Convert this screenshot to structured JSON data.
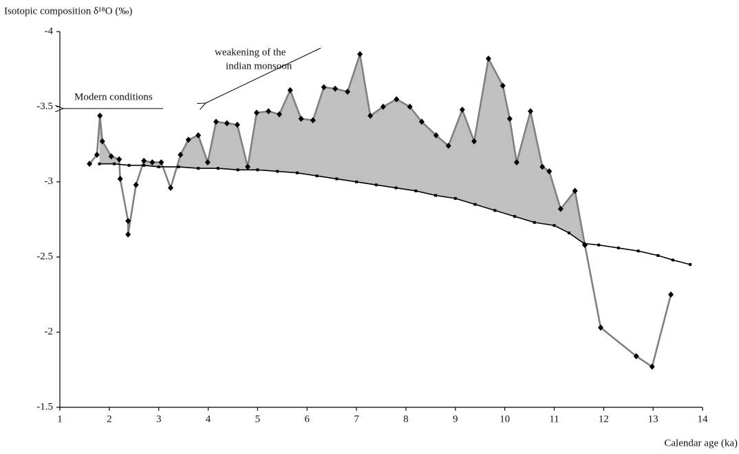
{
  "chart_data": {
    "type": "line",
    "ylabel": "Isotopic composition δ¹⁸O (‰)",
    "xlabel": "Calendar age (ka)",
    "annotations": [
      "Modern conditions",
      "weakening of the",
      "indian monsoon"
    ],
    "xlim": [
      1,
      14
    ],
    "xticks": [
      1,
      2,
      3,
      4,
      5,
      6,
      7,
      8,
      9,
      10,
      11,
      12,
      13,
      14
    ],
    "ylim": [
      -1.5,
      -4
    ],
    "yticks": [
      -4,
      -3.5,
      -3,
      -2.5,
      -2,
      -1.5
    ],
    "fill_color": "#c0c0c0",
    "series": [
      {
        "color": "#808080",
        "marker": "diamond",
        "marker_color": "#000000",
        "x": [
          1.6,
          1.75,
          1.81,
          1.86,
          2.04,
          2.2,
          2.22,
          2.38,
          2.38,
          2.54,
          2.7,
          2.87,
          3.05,
          3.24,
          3.44,
          3.6,
          3.8,
          3.99,
          4.16,
          4.38,
          4.59,
          4.8,
          4.98,
          5.22,
          5.44,
          5.66,
          5.88,
          6.12,
          6.34,
          6.57,
          6.82,
          7.07,
          7.28,
          7.54,
          7.81,
          8.08,
          8.32,
          8.61,
          8.86,
          9.14,
          9.38,
          9.67,
          9.96,
          10.1,
          10.24,
          10.52,
          10.76,
          10.9,
          11.13,
          11.42,
          11.62,
          11.94,
          12.66,
          12.98,
          13.36
        ],
        "values": [
          -3.12,
          -3.18,
          -3.44,
          -3.27,
          -3.17,
          -3.15,
          -3.02,
          -2.74,
          -2.65,
          -2.98,
          -3.14,
          -3.13,
          -3.13,
          -2.96,
          -3.18,
          -3.28,
          -3.31,
          -3.13,
          -3.4,
          -3.39,
          -3.38,
          -3.1,
          -3.46,
          -3.47,
          -3.45,
          -3.61,
          -3.42,
          -3.41,
          -3.63,
          -3.62,
          -3.6,
          -3.85,
          -3.44,
          -3.5,
          -3.55,
          -3.5,
          -3.4,
          -3.31,
          -3.24,
          -3.48,
          -3.27,
          -3.82,
          -3.64,
          -3.42,
          -3.13,
          -3.47,
          -3.1,
          -3.07,
          -2.82,
          -2.94,
          -2.58,
          -2.03,
          -1.84,
          -1.77,
          -2.25
        ]
      },
      {
        "color": "#000000",
        "marker": "square",
        "marker_color": "#000000",
        "x": [
          1.8,
          2.1,
          2.4,
          2.7,
          3.0,
          3.4,
          3.8,
          4.2,
          4.6,
          5.0,
          5.4,
          5.8,
          6.2,
          6.6,
          7.0,
          7.4,
          7.8,
          8.2,
          8.6,
          9.0,
          9.4,
          9.8,
          10.2,
          10.6,
          11.0,
          11.3,
          11.6,
          11.9,
          12.3,
          12.7,
          13.1,
          13.4,
          13.75
        ],
        "values": [
          -3.12,
          -3.12,
          -3.11,
          -3.11,
          -3.1,
          -3.1,
          -3.09,
          -3.09,
          -3.08,
          -3.08,
          -3.07,
          -3.06,
          -3.04,
          -3.02,
          -3.0,
          -2.98,
          -2.96,
          -2.94,
          -2.91,
          -2.89,
          -2.85,
          -2.81,
          -2.77,
          -2.73,
          -2.71,
          -2.66,
          -2.59,
          -2.58,
          -2.56,
          -2.54,
          -2.51,
          -2.48,
          -2.45
        ]
      }
    ]
  }
}
